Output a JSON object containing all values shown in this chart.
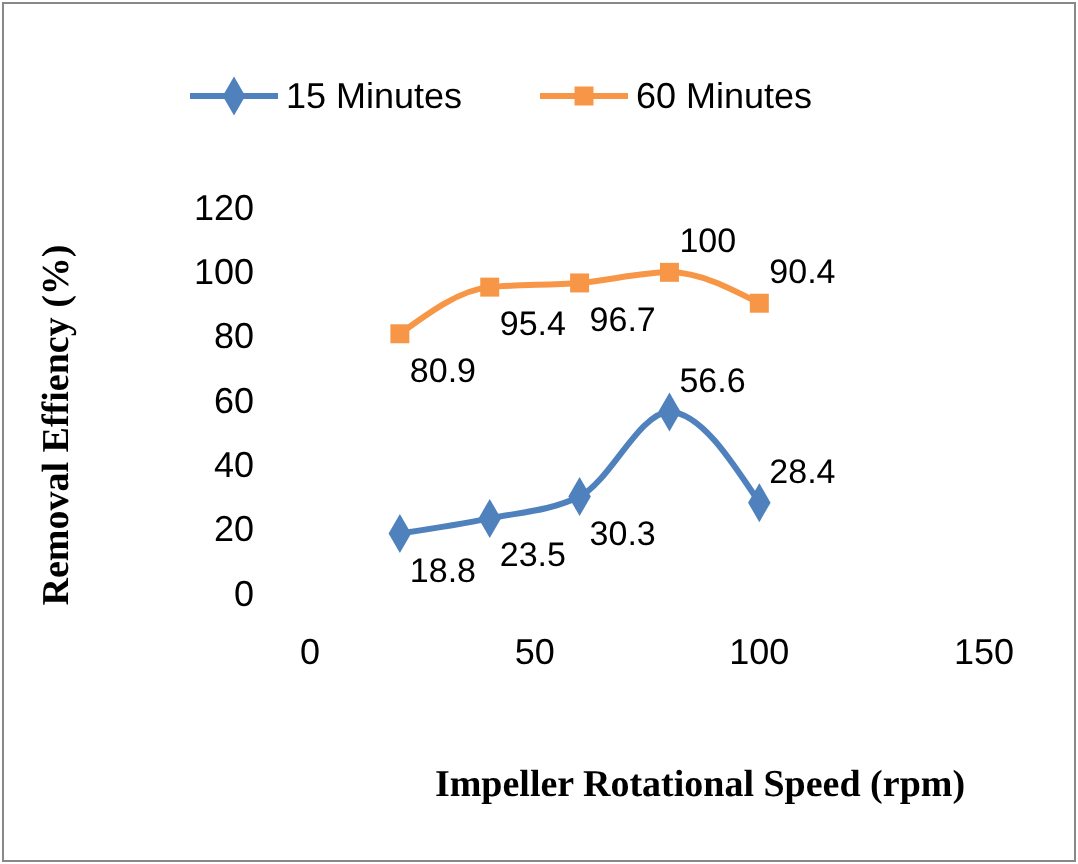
{
  "chart_data": {
    "type": "line",
    "xlabel": "Impeller Rotational Speed (rpm)",
    "ylabel": "Removal Effiency (%)",
    "x": [
      20,
      40,
      60,
      80,
      100
    ],
    "series": [
      {
        "name": "15 Minutes",
        "color": "#4f81bd",
        "marker": "diamond",
        "values": [
          18.8,
          23.5,
          30.3,
          56.6,
          28.4
        ]
      },
      {
        "name": "60 Minutes",
        "color": "#f79646",
        "marker": "square",
        "values": [
          80.9,
          95.4,
          96.7,
          100,
          90.4
        ]
      }
    ],
    "xlim": [
      0,
      150
    ],
    "xticks": [
      0,
      50,
      100,
      150
    ],
    "ylim": [
      0,
      120
    ],
    "yticks": [
      0,
      20,
      40,
      60,
      80,
      100,
      120
    ],
    "data_labels": true,
    "legend": "top",
    "grid": false
  }
}
